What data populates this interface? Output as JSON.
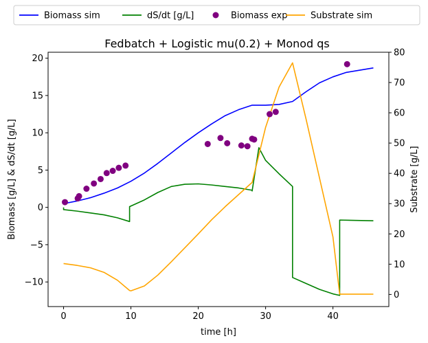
{
  "chart_data": {
    "type": "line",
    "title": "Fedbatch + Logistic mu(0.2) + Monod qs",
    "xlabel": "time [h]",
    "ylabel": "Biomass [g/L] & dS/dt [g/L]",
    "ylabel_right": "Substrate [g/L]",
    "xlim": [
      -2.3,
      48.3
    ],
    "ylim": [
      -13.3,
      20.8
    ],
    "ylim_right": [
      -4,
      80
    ],
    "x_ticks": [
      0,
      10,
      20,
      30,
      40
    ],
    "y_ticks": [
      -10,
      -5,
      0,
      5,
      10,
      15,
      20
    ],
    "y_ticks_right": [
      0,
      10,
      20,
      30,
      40,
      50,
      60,
      70,
      80
    ],
    "legend_position": "top (outside, above plot)",
    "grid": false,
    "colors": {
      "biomass_sim": "#0000ff",
      "dsdt": "#008000",
      "biomass_exp": "#800080",
      "substrate_sim": "#ffa500"
    },
    "series": [
      {
        "name": "Biomass sim",
        "axis": "left",
        "style": "line",
        "color": "#0000ff",
        "x": [
          0,
          2,
          4,
          6,
          8,
          10,
          12,
          14,
          16,
          18,
          20,
          22,
          24,
          26,
          28,
          30,
          32,
          34,
          36,
          38,
          40,
          42,
          44,
          46
        ],
        "y": [
          0.5,
          0.85,
          1.3,
          1.9,
          2.6,
          3.5,
          4.6,
          5.9,
          7.3,
          8.7,
          10.0,
          11.2,
          12.3,
          13.1,
          13.7,
          13.7,
          13.8,
          14.2,
          15.5,
          16.7,
          17.5,
          18.1,
          18.4,
          18.7
        ]
      },
      {
        "name": "dS/dt [g/L]",
        "axis": "left",
        "style": "line",
        "color": "#008000",
        "x": [
          0,
          0,
          2,
          4,
          6,
          8,
          9.8,
          9.8,
          12,
          14,
          16,
          18,
          20,
          22,
          24,
          26,
          28,
          28,
          29,
          30,
          32,
          34,
          34,
          34,
          36,
          38,
          40,
          41,
          41,
          41,
          46
        ],
        "y": [
          0.0,
          -0.3,
          -0.5,
          -0.75,
          -1.0,
          -1.4,
          -1.9,
          0.1,
          1.0,
          2.0,
          2.8,
          3.1,
          3.15,
          3.0,
          2.8,
          2.6,
          2.3,
          2.2,
          8.0,
          6.3,
          4.5,
          2.8,
          2.3,
          -9.4,
          -10.2,
          -11.0,
          -11.6,
          -11.8,
          -11.8,
          -1.7,
          -1.8
        ]
      },
      {
        "name": "Biomass exp",
        "axis": "left",
        "style": "scatter",
        "color": "#800080",
        "x": [
          0.2,
          2.1,
          2.3,
          3.4,
          4.5,
          5.5,
          6.4,
          7.3,
          8.2,
          9.2,
          21.4,
          23.3,
          24.3,
          26.4,
          27.3,
          28.0,
          28.3,
          30.6,
          31.5,
          42.1
        ],
        "y": [
          0.7,
          1.2,
          1.5,
          2.5,
          3.2,
          3.8,
          4.6,
          4.9,
          5.3,
          5.6,
          8.5,
          9.3,
          8.6,
          8.3,
          8.2,
          9.2,
          9.1,
          12.5,
          12.8,
          19.2
        ]
      },
      {
        "name": "Substrate sim",
        "axis": "right",
        "style": "line",
        "color": "#ffa500",
        "x": [
          0,
          2,
          4,
          6,
          8,
          9.8,
          10,
          12,
          14,
          16,
          18,
          20,
          22,
          24,
          26,
          28,
          30,
          32,
          34,
          36,
          38,
          40,
          41,
          46
        ],
        "y": [
          10.2,
          9.6,
          8.8,
          7.3,
          4.7,
          1.3,
          1.2,
          2.8,
          6.4,
          10.8,
          15.4,
          20.0,
          24.7,
          29.0,
          33.0,
          37.0,
          55.2,
          68.5,
          76.5,
          58.0,
          38.5,
          19.0,
          0.1,
          0.1
        ]
      }
    ]
  }
}
